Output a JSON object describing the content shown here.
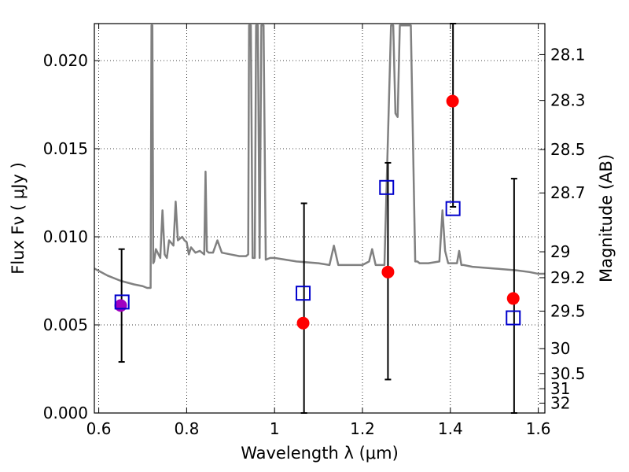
{
  "chart_data": {
    "type": "scatter",
    "xlabel": "Wavelength  λ (μm)",
    "ylabel": "Flux  Fν  ( μJy )",
    "ylabel_right": "Magnitude (AB)",
    "xlim": [
      0.59,
      1.615
    ],
    "ylim": [
      0.0,
      0.0221
    ],
    "x_ticks": [
      0.6,
      0.8,
      1.0,
      1.2,
      1.4,
      1.6
    ],
    "x_tick_labels": [
      "0.6",
      "0.8",
      "1",
      "1.2",
      "1.4",
      "1.6"
    ],
    "y_ticks": [
      0.0,
      0.005,
      0.01,
      0.015,
      0.02
    ],
    "y_tick_labels": [
      "0.000",
      "0.005",
      "0.010",
      "0.015",
      "0.020"
    ],
    "right_ticks": [
      {
        "label": "28.1",
        "flux": 0.02034
      },
      {
        "label": "28.3",
        "flux": 0.01774
      },
      {
        "label": "28.5",
        "flux": 0.01495
      },
      {
        "label": "28.7",
        "flux": 0.01249
      },
      {
        "label": "29",
        "flux": 0.00915
      },
      {
        "label": "29.2",
        "flux": 0.00768
      },
      {
        "label": "29.5",
        "flux": 0.00578
      },
      {
        "label": "30",
        "flux": 0.00365
      },
      {
        "label": "30.5",
        "flux": 0.00224
      },
      {
        "label": "31",
        "flux": 0.00138
      },
      {
        "label": "32",
        "flux": 0.00056
      }
    ],
    "grid": true,
    "model_spectrum": {
      "color": "#808080",
      "x": [
        0.59,
        0.62,
        0.65,
        0.68,
        0.7,
        0.71,
        0.718,
        0.72,
        0.722,
        0.724,
        0.726,
        0.73,
        0.74,
        0.745,
        0.75,
        0.755,
        0.76,
        0.77,
        0.775,
        0.78,
        0.79,
        0.795,
        0.8,
        0.805,
        0.81,
        0.82,
        0.83,
        0.84,
        0.843,
        0.846,
        0.85,
        0.86,
        0.87,
        0.88,
        0.9,
        0.92,
        0.935,
        0.94,
        0.942,
        0.946,
        0.95,
        0.955,
        0.958,
        0.962,
        0.966,
        0.97,
        0.975,
        0.98,
        0.99,
        1.0,
        1.05,
        1.1,
        1.125,
        1.135,
        1.145,
        1.16,
        1.2,
        1.215,
        1.222,
        1.23,
        1.25,
        1.265,
        1.27,
        1.275,
        1.28,
        1.285,
        1.29,
        1.295,
        1.3,
        1.31,
        1.32,
        1.325,
        1.33,
        1.35,
        1.375,
        1.382,
        1.388,
        1.395,
        1.405,
        1.415,
        1.42,
        1.425,
        1.43,
        1.45,
        1.5,
        1.55,
        1.58,
        1.6,
        1.615
      ],
      "y": [
        0.0082,
        0.0078,
        0.0075,
        0.0073,
        0.0072,
        0.0071,
        0.0071,
        0.022,
        0.022,
        0.0085,
        0.0086,
        0.0093,
        0.0088,
        0.0115,
        0.009,
        0.0088,
        0.0098,
        0.0095,
        0.012,
        0.0098,
        0.01,
        0.0098,
        0.0097,
        0.009,
        0.0094,
        0.0091,
        0.0092,
        0.009,
        0.0137,
        0.0092,
        0.0091,
        0.0091,
        0.0098,
        0.0091,
        0.009,
        0.0089,
        0.0089,
        0.009,
        0.022,
        0.022,
        0.0088,
        0.0088,
        0.022,
        0.022,
        0.0088,
        0.022,
        0.022,
        0.0087,
        0.0088,
        0.0088,
        0.0086,
        0.0085,
        0.0084,
        0.0095,
        0.0084,
        0.0084,
        0.0084,
        0.0086,
        0.0093,
        0.0084,
        0.0084,
        0.022,
        0.022,
        0.017,
        0.0168,
        0.022,
        0.022,
        0.022,
        0.022,
        0.022,
        0.0086,
        0.0086,
        0.0085,
        0.0085,
        0.0086,
        0.0115,
        0.0092,
        0.0085,
        0.0085,
        0.0085,
        0.0092,
        0.0084,
        0.0084,
        0.0083,
        0.0082,
        0.0081,
        0.008,
        0.0079,
        0.0079
      ]
    },
    "series": [
      {
        "name": "",
        "marker": "circle",
        "color": "#ff0000",
        "points": [
          {
            "x": 1.065,
            "y": 0.0051
          },
          {
            "x": 1.258,
            "y": 0.008
          },
          {
            "x": 1.405,
            "y": 0.0177
          },
          {
            "x": 1.543,
            "y": 0.0065
          }
        ]
      },
      {
        "name": "",
        "marker": "circle",
        "color": "#a000c0",
        "points": [
          {
            "x": 0.65,
            "y": 0.0061
          }
        ]
      },
      {
        "name": "",
        "marker": "open-square",
        "color": "#0000cc",
        "points": [
          {
            "x": 0.653,
            "y": 0.0063
          },
          {
            "x": 1.065,
            "y": 0.0068
          },
          {
            "x": 1.255,
            "y": 0.0128
          },
          {
            "x": 1.406,
            "y": 0.0116
          },
          {
            "x": 1.543,
            "y": 0.0054
          }
        ]
      }
    ],
    "error_bars": [
      {
        "x": 0.652,
        "low": 0.0029,
        "high": 0.0093
      },
      {
        "x": 1.067,
        "low": 0.0,
        "high": 0.0119
      },
      {
        "x": 1.258,
        "low": 0.0019,
        "high": 0.0142
      },
      {
        "x": 1.406,
        "low": 0.0117,
        "high": 0.0221
      },
      {
        "x": 1.545,
        "low": 0.0,
        "high": 0.0133
      }
    ]
  }
}
